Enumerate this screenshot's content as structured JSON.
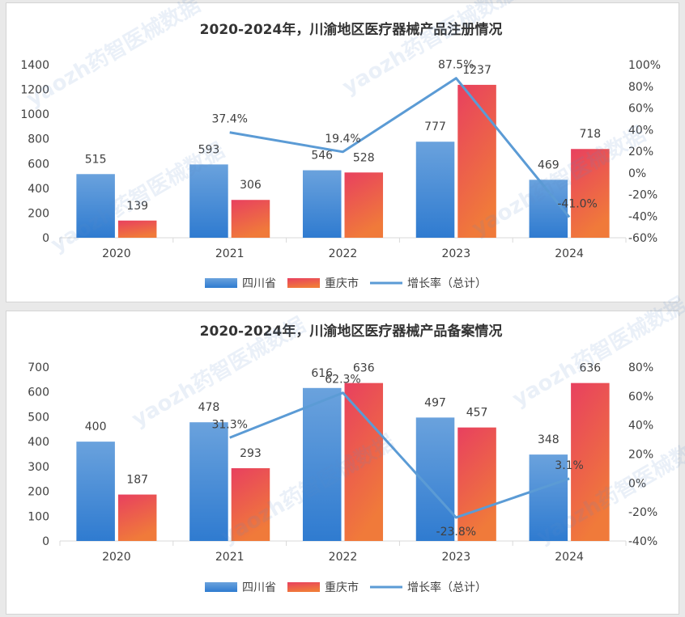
{
  "watermark": "yaozh药智医械数据",
  "colors": {
    "sichuan_top": "#6aa2dd",
    "sichuan_bottom": "#2f7bd0",
    "chongqing_top": "#e8405f",
    "chongqing_bottom": "#f07a3a",
    "growth_line": "#5b9bd5",
    "text": "#404040",
    "grid": "#d9d9d9"
  },
  "chart_data": [
    {
      "type": "bar",
      "title": "2020-2024年，川渝地区医疗器械产品注册情况",
      "categories": [
        "2020",
        "2021",
        "2022",
        "2023",
        "2024"
      ],
      "series": [
        {
          "name": "四川省",
          "values": [
            515,
            593,
            546,
            777,
            469
          ]
        },
        {
          "name": "重庆市",
          "values": [
            139,
            306,
            528,
            1237,
            718
          ]
        }
      ],
      "line_series": {
        "name": "增长率（总计）",
        "values": [
          null,
          37.4,
          19.4,
          87.5,
          -41.0
        ],
        "labels": [
          "",
          "37.4%",
          "19.4%",
          "87.5%",
          "-41.0%"
        ]
      },
      "y_ticks": [
        "0",
        "200",
        "400",
        "600",
        "800",
        "1000",
        "1200",
        "1400"
      ],
      "ylim": [
        0,
        1400
      ],
      "y2_ticks": [
        "-60%",
        "-40%",
        "-20%",
        "0%",
        "20%",
        "40%",
        "60%",
        "80%",
        "100%"
      ],
      "y2lim": [
        -60,
        100
      ],
      "legend": [
        "四川省",
        "重庆市",
        "增长率（总计）"
      ],
      "legend_position": "bottom"
    },
    {
      "type": "bar",
      "title": "2020-2024年，川渝地区医疗器械产品备案情况",
      "categories": [
        "2020",
        "2021",
        "2022",
        "2023",
        "2024"
      ],
      "series": [
        {
          "name": "四川省",
          "values": [
            400,
            478,
            616,
            497,
            348
          ]
        },
        {
          "name": "重庆市",
          "values": [
            187,
            293,
            636,
            457,
            636
          ]
        }
      ],
      "line_series": {
        "name": "增长率（总计）",
        "values": [
          null,
          31.3,
          62.3,
          -23.8,
          3.1
        ],
        "labels": [
          "",
          "31.3%",
          "62.3%",
          "-23.8%",
          "3.1%"
        ]
      },
      "y_ticks": [
        "0",
        "100",
        "200",
        "300",
        "400",
        "500",
        "600",
        "700"
      ],
      "ylim": [
        0,
        700
      ],
      "y2_ticks": [
        "-40%",
        "-20%",
        "0%",
        "20%",
        "40%",
        "60%",
        "80%"
      ],
      "y2lim": [
        -40,
        80
      ],
      "legend": [
        "四川省",
        "重庆市",
        "增长率（总计）"
      ],
      "legend_position": "bottom"
    }
  ]
}
